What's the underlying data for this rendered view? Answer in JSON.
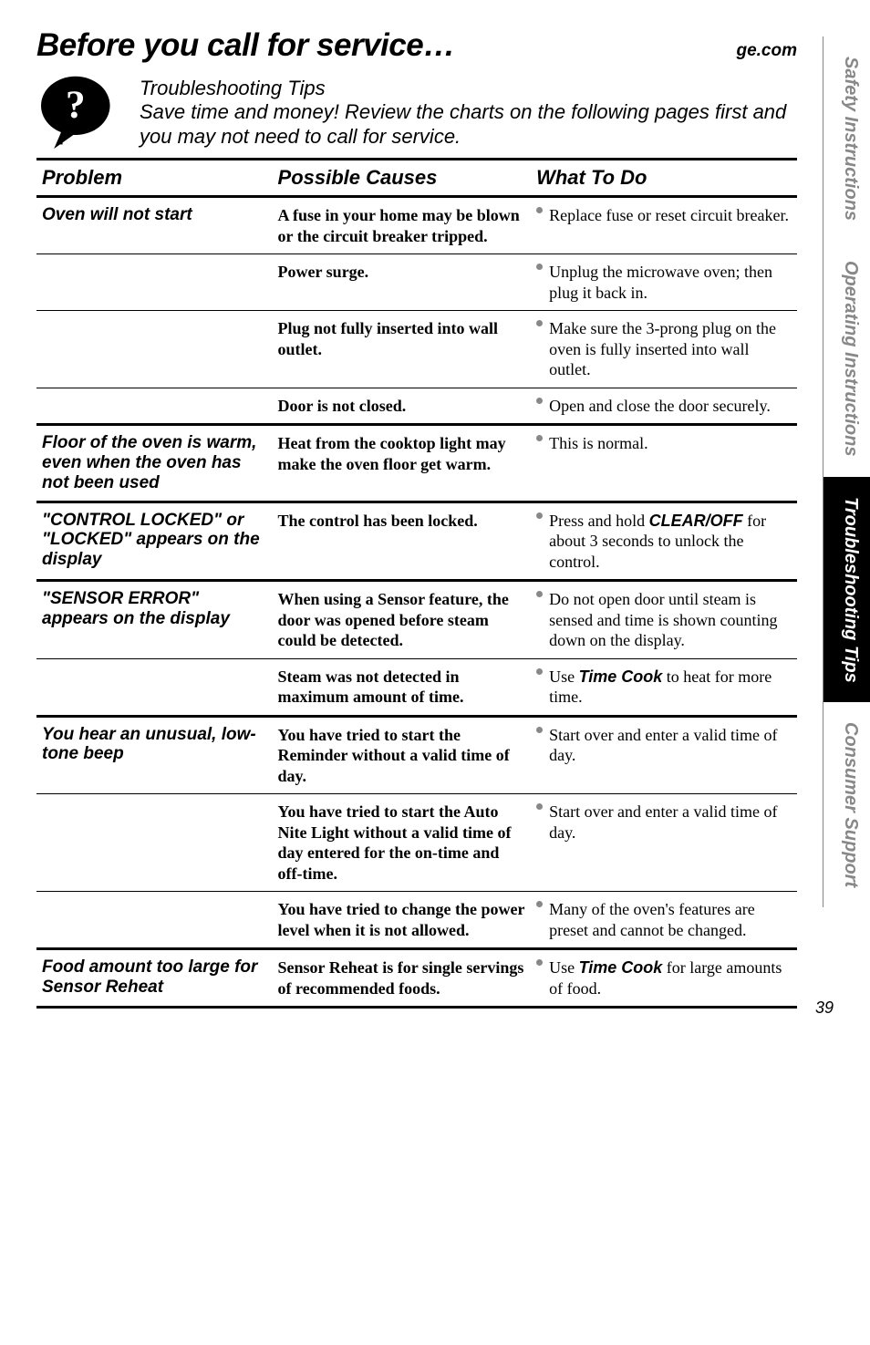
{
  "header": {
    "title": "Before you call for service…",
    "url": "ge.com"
  },
  "tips": {
    "heading": "Troubleshooting Tips",
    "body": "Save time and money! Review the charts on the following pages first and you may not need to call for service."
  },
  "columns": {
    "c1": "Problem",
    "c2": "Possible Causes",
    "c3": "What To Do"
  },
  "rows": [
    {
      "problem": "Oven will not start",
      "cause": "A fuse in your home may be blown or the circuit breaker tripped.",
      "todo_pre": "Replace fuse or reset circuit breaker.",
      "section_end": false
    },
    {
      "problem": "",
      "cause": "Power surge.",
      "todo_pre": "Unplug the microwave oven; then plug it back in.",
      "section_end": false
    },
    {
      "problem": "",
      "cause": "Plug not fully inserted into wall outlet.",
      "todo_pre": "Make sure the 3-prong plug on the oven is fully inserted into wall outlet.",
      "section_end": false
    },
    {
      "problem": "",
      "cause": "Door is not closed.",
      "todo_pre": "Open and close the door securely.",
      "section_end": true
    },
    {
      "problem": "Floor of the oven is warm, even when the oven has not been used",
      "cause": "Heat from the cooktop light may make the oven floor get warm.",
      "todo_pre": "This is normal.",
      "section_end": true
    },
    {
      "problem": "\"CONTROL LOCKED\" or \"LOCKED\" appears on the display",
      "cause": "The control has been locked.",
      "todo_pre": "Press and hold ",
      "todo_em": "CLEAR/OFF",
      "todo_post": " for about 3 seconds to unlock the control.",
      "section_end": true
    },
    {
      "problem": "\"SENSOR ERROR\" appears on the display",
      "cause": "When using a Sensor feature, the door was opened before steam could be detected.",
      "todo_pre": "Do not open door until steam is sensed and time is shown counting down on the display.",
      "section_end": false
    },
    {
      "problem": "",
      "cause": "Steam was not detected in maximum amount of time.",
      "todo_pre": "Use ",
      "todo_em": "Time Cook",
      "todo_post": " to heat for more time.",
      "section_end": true
    },
    {
      "problem": "You hear an unusual, low-tone beep",
      "cause": "You have tried to start the Reminder without a valid time of day.",
      "todo_pre": "Start over and enter a valid time of day.",
      "section_end": false
    },
    {
      "problem": "",
      "cause": "You have tried to start the Auto Nite Light without a valid time of day entered for the on-time and off-time.",
      "todo_pre": "Start over and enter a valid time of day.",
      "section_end": false
    },
    {
      "problem": "",
      "cause": "You have tried to change the power level when it is not allowed.",
      "todo_pre": "Many of the oven's features are preset and cannot be changed.",
      "section_end": true
    },
    {
      "problem": "Food amount too large for Sensor Reheat",
      "cause": "Sensor Reheat is for single servings of recommended foods.",
      "todo_pre": "Use ",
      "todo_em": "Time Cook",
      "todo_post": " for large amounts of food.",
      "section_end": true
    }
  ],
  "sidetabs": {
    "t1": "Safety Instructions",
    "t2": "Operating Instructions",
    "t3": "Troubleshooting Tips",
    "t4": "Consumer Support"
  },
  "pagenum": "39"
}
